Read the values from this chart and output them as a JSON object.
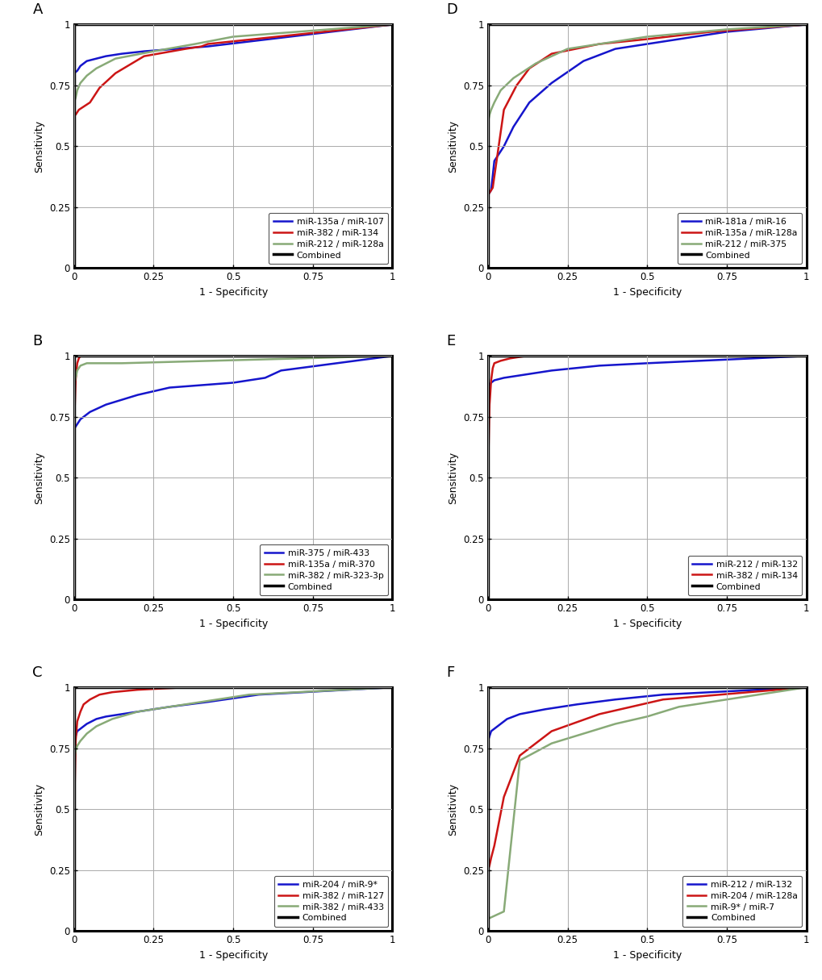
{
  "panels": [
    {
      "label": "A",
      "curves": [
        {
          "name": "miR-135a / miR-107",
          "color": "#1515CC",
          "x": [
            0,
            0.01,
            0.02,
            0.04,
            0.07,
            0.1,
            0.15,
            0.22,
            0.32,
            0.42,
            1.0
          ],
          "y": [
            0.8,
            0.81,
            0.83,
            0.85,
            0.86,
            0.87,
            0.88,
            0.89,
            0.9,
            0.91,
            1.0
          ]
        },
        {
          "name": "miR-382 / miR-134",
          "color": "#CC1515",
          "x": [
            0,
            0.005,
            0.01,
            0.015,
            0.05,
            0.08,
            0.13,
            0.22,
            0.35,
            0.4,
            0.42,
            1.0
          ],
          "y": [
            0.63,
            0.63,
            0.64,
            0.65,
            0.68,
            0.74,
            0.8,
            0.87,
            0.9,
            0.91,
            0.92,
            1.0
          ]
        },
        {
          "name": "miR-212 / miR-128a",
          "color": "#88AA77",
          "x": [
            0,
            0.005,
            0.01,
            0.02,
            0.04,
            0.07,
            0.13,
            0.25,
            0.38,
            0.5,
            1.0
          ],
          "y": [
            0.68,
            0.7,
            0.73,
            0.76,
            0.79,
            0.82,
            0.86,
            0.89,
            0.92,
            0.95,
            1.0
          ]
        },
        {
          "name": "Combined",
          "color": "#000000",
          "x": [
            0,
            0.0,
            1.0
          ],
          "y": [
            0.0,
            1.0,
            1.0
          ]
        }
      ]
    },
    {
      "label": "B",
      "curves": [
        {
          "name": "miR-375 / miR-433",
          "color": "#1515CC",
          "x": [
            0,
            0.005,
            0.01,
            0.02,
            0.05,
            0.1,
            0.15,
            0.2,
            0.3,
            0.4,
            0.5,
            0.6,
            0.65,
            1.0
          ],
          "y": [
            0.7,
            0.71,
            0.72,
            0.74,
            0.77,
            0.8,
            0.82,
            0.84,
            0.87,
            0.88,
            0.89,
            0.91,
            0.94,
            1.0
          ]
        },
        {
          "name": "miR-135a / miR-370",
          "color": "#CC1515",
          "x": [
            0,
            0.005,
            0.01,
            0.015,
            0.02,
            0.05,
            0.1,
            1.0
          ],
          "y": [
            0.7,
            0.9,
            0.97,
            0.99,
            1.0,
            1.0,
            1.0,
            1.0
          ]
        },
        {
          "name": "miR-382 / miR-323-3p",
          "color": "#88AA77",
          "x": [
            0,
            0.005,
            0.01,
            0.02,
            0.04,
            0.08,
            0.12,
            0.15,
            1.0
          ],
          "y": [
            0.88,
            0.91,
            0.94,
            0.96,
            0.97,
            0.97,
            0.97,
            0.97,
            1.0
          ]
        },
        {
          "name": "Combined",
          "color": "#000000",
          "x": [
            0,
            0.0,
            1.0
          ],
          "y": [
            0.0,
            1.0,
            1.0
          ]
        }
      ]
    },
    {
      "label": "C",
      "curves": [
        {
          "name": "miR-204 / miR-9*",
          "color": "#1515CC",
          "x": [
            0,
            0.005,
            0.01,
            0.02,
            0.04,
            0.07,
            0.1,
            0.15,
            0.2,
            0.3,
            0.42,
            0.58,
            1.0
          ],
          "y": [
            0.78,
            0.8,
            0.82,
            0.83,
            0.85,
            0.87,
            0.88,
            0.89,
            0.9,
            0.92,
            0.94,
            0.97,
            1.0
          ]
        },
        {
          "name": "miR-382 / miR-127",
          "color": "#CC1515",
          "x": [
            0,
            0.005,
            0.01,
            0.02,
            0.03,
            0.05,
            0.08,
            0.12,
            0.2,
            0.35,
            1.0
          ],
          "y": [
            0.45,
            0.78,
            0.86,
            0.9,
            0.93,
            0.95,
            0.97,
            0.98,
            0.99,
            1.0,
            1.0
          ]
        },
        {
          "name": "miR-382 / miR-433",
          "color": "#88AA77",
          "x": [
            0,
            0.005,
            0.01,
            0.02,
            0.04,
            0.07,
            0.12,
            0.2,
            0.35,
            0.55,
            1.0
          ],
          "y": [
            0.7,
            0.74,
            0.76,
            0.78,
            0.81,
            0.84,
            0.87,
            0.9,
            0.93,
            0.97,
            1.0
          ]
        },
        {
          "name": "Combined",
          "color": "#000000",
          "x": [
            0,
            0.0,
            1.0
          ],
          "y": [
            0.0,
            1.0,
            1.0
          ]
        }
      ]
    },
    {
      "label": "D",
      "curves": [
        {
          "name": "miR-181a / miR-16",
          "color": "#1515CC",
          "x": [
            0,
            0.01,
            0.02,
            0.05,
            0.08,
            0.13,
            0.2,
            0.3,
            0.4,
            0.5,
            0.75,
            1.0
          ],
          "y": [
            0.3,
            0.32,
            0.44,
            0.5,
            0.58,
            0.68,
            0.76,
            0.85,
            0.9,
            0.92,
            0.97,
            1.0
          ]
        },
        {
          "name": "miR-135a / miR-128a",
          "color": "#CC1515",
          "x": [
            0,
            0.005,
            0.01,
            0.015,
            0.05,
            0.09,
            0.13,
            0.2,
            0.35,
            0.5,
            0.7,
            1.0
          ],
          "y": [
            0.3,
            0.31,
            0.32,
            0.33,
            0.65,
            0.75,
            0.82,
            0.88,
            0.92,
            0.94,
            0.97,
            1.0
          ]
        },
        {
          "name": "miR-212 / miR-375",
          "color": "#88AA77",
          "x": [
            0,
            0.005,
            0.01,
            0.02,
            0.04,
            0.08,
            0.15,
            0.25,
            0.4,
            0.5,
            0.75,
            1.0
          ],
          "y": [
            0.6,
            0.63,
            0.65,
            0.68,
            0.73,
            0.78,
            0.84,
            0.9,
            0.93,
            0.95,
            0.98,
            1.0
          ]
        },
        {
          "name": "Combined",
          "color": "#000000",
          "x": [
            0,
            0.0,
            1.0
          ],
          "y": [
            0.0,
            1.0,
            1.0
          ]
        }
      ]
    },
    {
      "label": "E",
      "curves": [
        {
          "name": "miR-212 / miR-132",
          "color": "#1515CC",
          "x": [
            0,
            0.005,
            0.01,
            0.02,
            0.05,
            0.1,
            0.2,
            0.35,
            0.5,
            1.0
          ],
          "y": [
            0.87,
            0.88,
            0.89,
            0.9,
            0.91,
            0.92,
            0.94,
            0.96,
            0.97,
            1.0
          ]
        },
        {
          "name": "miR-382 / miR-134",
          "color": "#CC1515",
          "x": [
            0,
            0.005,
            0.01,
            0.015,
            0.02,
            0.04,
            0.07,
            0.12,
            0.2,
            0.35,
            0.46,
            1.0
          ],
          "y": [
            0.5,
            0.8,
            0.9,
            0.95,
            0.97,
            0.98,
            0.99,
            1.0,
            1.0,
            1.0,
            1.0,
            1.0
          ]
        },
        {
          "name": "Combined",
          "color": "#000000",
          "x": [
            0,
            0.0,
            1.0
          ],
          "y": [
            0.0,
            1.0,
            1.0
          ]
        }
      ]
    },
    {
      "label": "F",
      "curves": [
        {
          "name": "miR-212 / miR-132",
          "color": "#1515CC",
          "x": [
            0,
            0.005,
            0.01,
            0.03,
            0.06,
            0.1,
            0.18,
            0.28,
            0.4,
            0.55,
            1.0
          ],
          "y": [
            0.78,
            0.8,
            0.82,
            0.84,
            0.87,
            0.89,
            0.91,
            0.93,
            0.95,
            0.97,
            1.0
          ]
        },
        {
          "name": "miR-204 / miR-128a",
          "color": "#CC1515",
          "x": [
            0,
            0.005,
            0.01,
            0.02,
            0.05,
            0.1,
            0.2,
            0.35,
            0.55,
            1.0
          ],
          "y": [
            0.25,
            0.27,
            0.3,
            0.35,
            0.55,
            0.72,
            0.82,
            0.89,
            0.95,
            1.0
          ]
        },
        {
          "name": "miR-9* / miR-7",
          "color": "#88AA77",
          "x": [
            0,
            0.05,
            0.1,
            0.2,
            0.3,
            0.4,
            0.5,
            0.6,
            1.0
          ],
          "y": [
            0.05,
            0.08,
            0.7,
            0.77,
            0.81,
            0.85,
            0.88,
            0.92,
            1.0
          ]
        },
        {
          "name": "Combined",
          "color": "#000000",
          "x": [
            0,
            0.0,
            1.0
          ],
          "y": [
            0.0,
            1.0,
            1.0
          ]
        }
      ]
    }
  ],
  "xlabel": "1 - Specificity",
  "ylabel": "Sensitivity",
  "xticks": [
    0,
    0.25,
    0.5,
    0.75,
    1
  ],
  "yticks": [
    0,
    0.25,
    0.5,
    0.75,
    1
  ],
  "xticklabels": [
    "0",
    "0.25",
    "0.5",
    "0.75",
    "1"
  ],
  "yticklabels": [
    "0",
    "0.25",
    "0.5",
    "0.75",
    "1"
  ],
  "xlim": [
    0,
    1
  ],
  "ylim": [
    0,
    1
  ],
  "linewidth": 1.8,
  "combined_linewidth": 2.5,
  "label_fontsize": 9,
  "tick_fontsize": 8.5,
  "legend_fontsize": 7.8,
  "panel_label_fontsize": 13,
  "bg_color": "#FFFFFF",
  "grid_color": "#AAAAAA",
  "spine_color": "#000000",
  "spine_lw": 2.2
}
